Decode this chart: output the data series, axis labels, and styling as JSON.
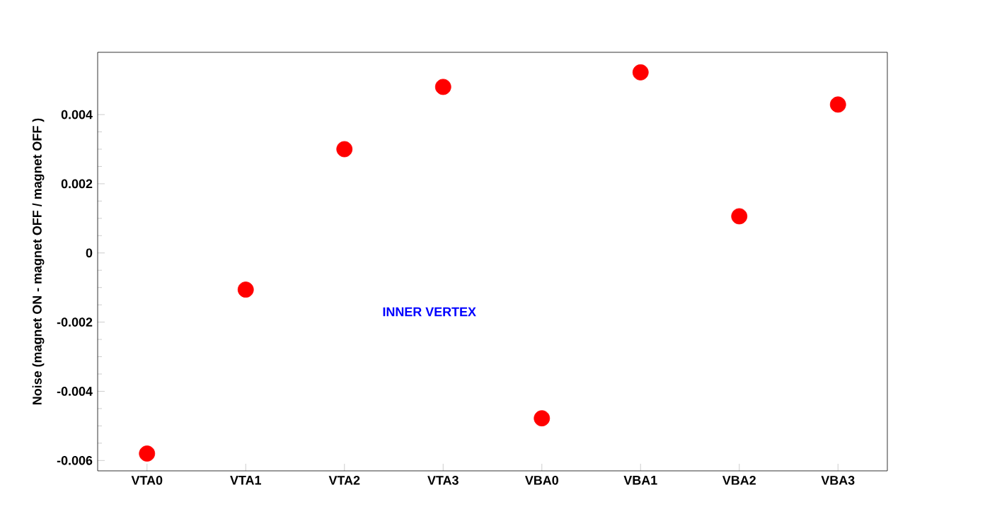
{
  "chart_data": {
    "type": "scatter",
    "ylabel": "Noise (magnet ON - magnet OFF / magnet OFF )",
    "categories": [
      "VTA0",
      "VTA1",
      "VTA2",
      "VTA3",
      "VBA0",
      "VBA1",
      "VBA2",
      "VBA3"
    ],
    "values": [
      -0.0058,
      -0.00106,
      0.003,
      0.0048,
      -0.00478,
      0.00522,
      0.00106,
      0.00429
    ],
    "color": "#ff0000",
    "marker": "circle",
    "ylim": [
      -0.0063,
      0.0058
    ],
    "yticks": [
      -0.006,
      -0.004,
      -0.002,
      0,
      0.002,
      0.004
    ],
    "annotations": [
      "INNER VERTEX"
    ]
  }
}
